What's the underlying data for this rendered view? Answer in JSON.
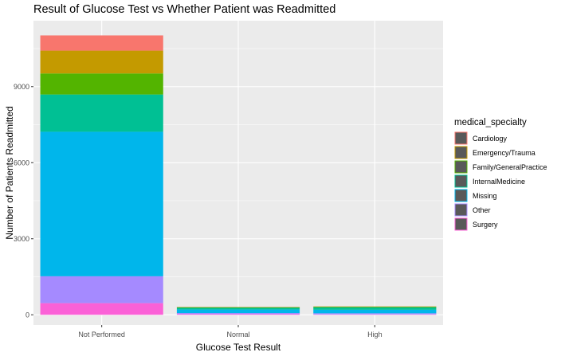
{
  "chart_data": {
    "type": "bar",
    "stacked": true,
    "title": "Result of Glucose Test vs Whether Patient was Readmitted",
    "xlabel": "Glucose Test Result",
    "ylabel": "Number of Patients Readmitted",
    "categories": [
      "Not Performed",
      "Normal",
      "High"
    ],
    "ylim": [
      -400,
      11600
    ],
    "yticks": [
      0,
      3000,
      6000,
      9000
    ],
    "grid": true,
    "background": "#ebebeb",
    "legend": {
      "title": "medical_specialty",
      "position": "right"
    },
    "series": [
      {
        "name": "Cardiology",
        "color": "#f8766d",
        "values": [
          600,
          5,
          5
        ]
      },
      {
        "name": "Emergency/Trauma",
        "color": "#c49a00",
        "values": [
          900,
          5,
          5
        ]
      },
      {
        "name": "Family/GeneralPractice",
        "color": "#53b400",
        "values": [
          830,
          25,
          30
        ]
      },
      {
        "name": "InternalMedicine",
        "color": "#00c094",
        "values": [
          1470,
          65,
          90
        ]
      },
      {
        "name": "Missing",
        "color": "#00b6eb",
        "values": [
          5700,
          140,
          140
        ]
      },
      {
        "name": "Other",
        "color": "#a58aff",
        "values": [
          1060,
          45,
          45
        ]
      },
      {
        "name": "Surgery",
        "color": "#fb61d7",
        "values": [
          460,
          25,
          15
        ]
      }
    ]
  }
}
